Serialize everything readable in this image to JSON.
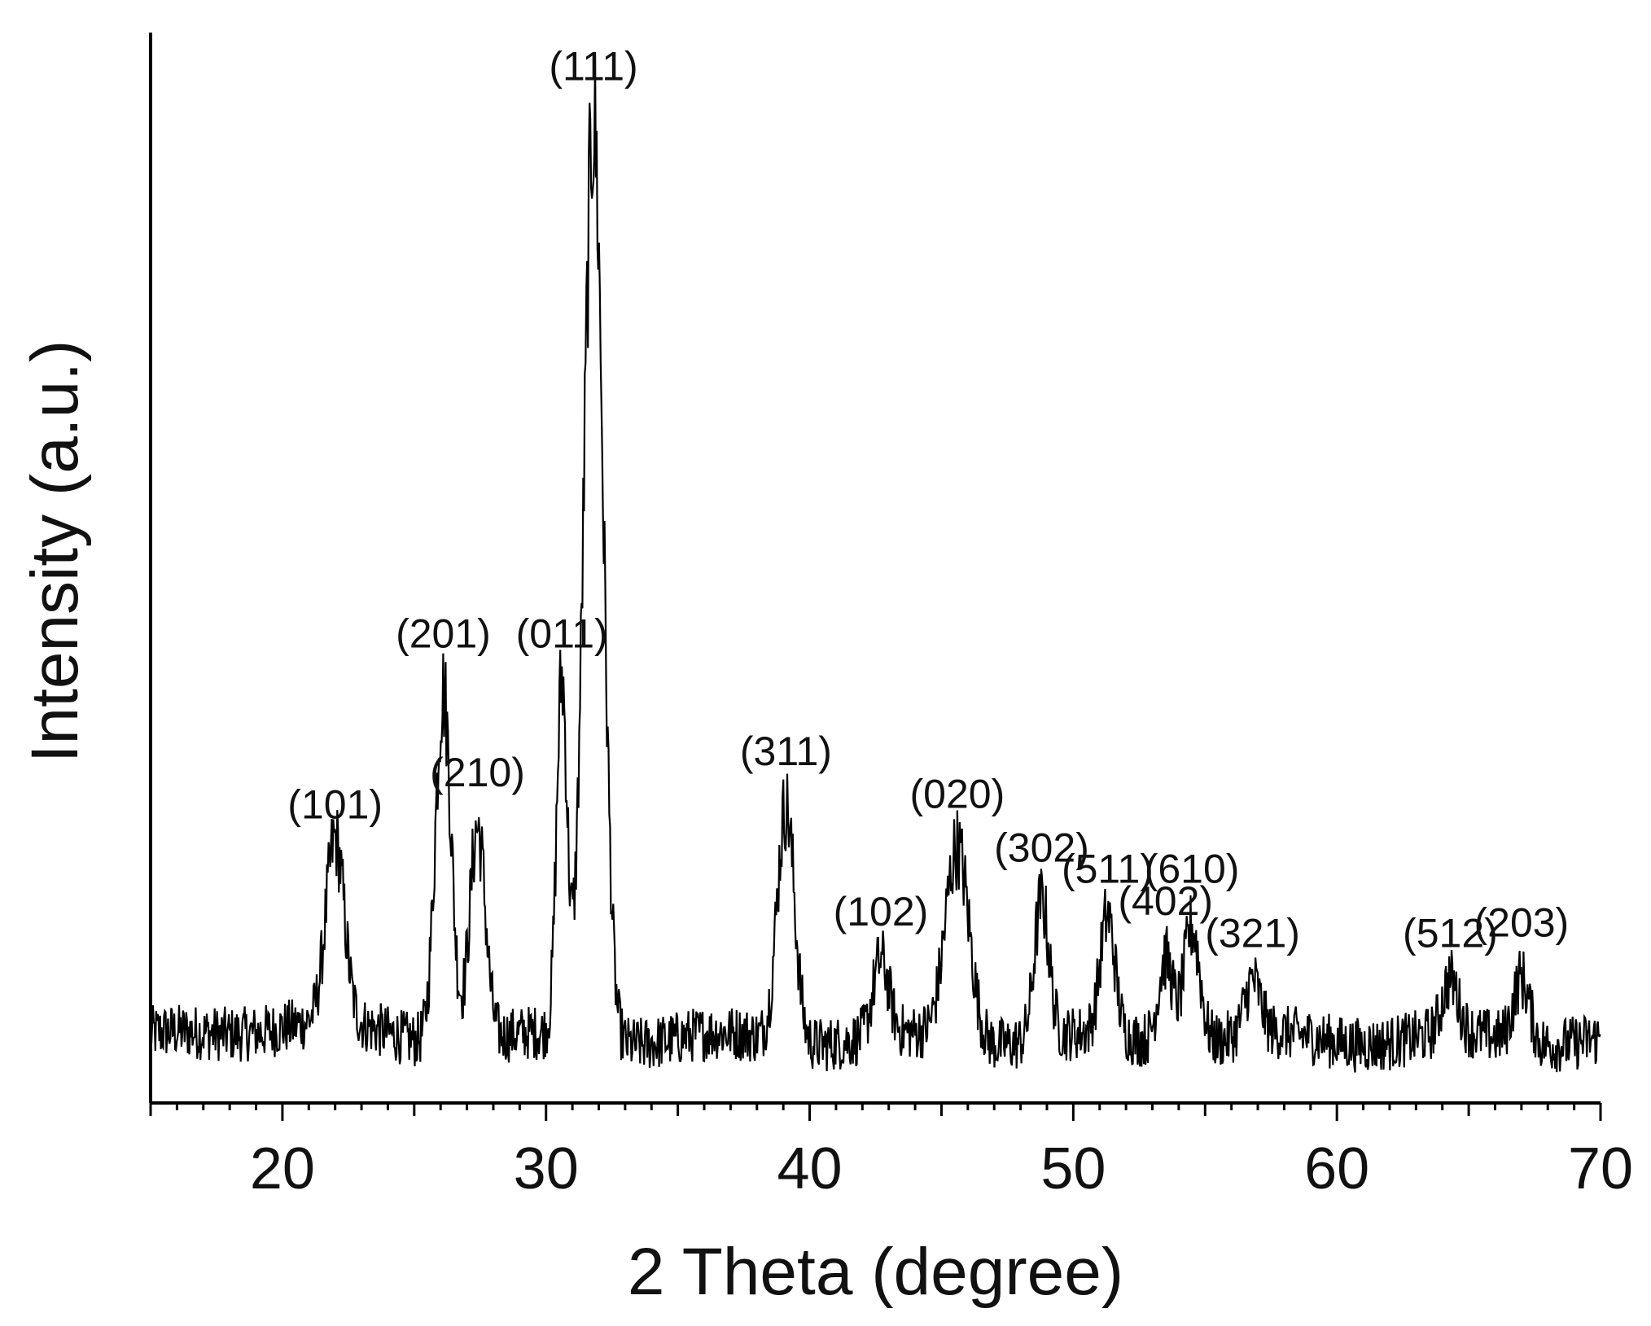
{
  "chart_data": {
    "type": "line",
    "title": "",
    "xlabel": "2 Theta (degree)",
    "ylabel": "Intensity (a.u.)",
    "xlim": [
      15,
      70
    ],
    "ylim": [
      0,
      100
    ],
    "xticks": [
      20,
      30,
      40,
      50,
      60,
      70
    ],
    "yticks_shown": false,
    "grid": false,
    "line_color": "#000000",
    "baseline": 6,
    "noise_amplitude": 2.6,
    "peaks": [
      {
        "label": "(101)",
        "two_theta": 22.0,
        "intensity": 17,
        "width": 0.35
      },
      {
        "label": "(201)",
        "two_theta": 26.1,
        "intensity": 33,
        "width": 0.3
      },
      {
        "label": "(210)",
        "two_theta": 27.4,
        "intensity": 20,
        "width": 0.3
      },
      {
        "label": "(011)",
        "two_theta": 30.6,
        "intensity": 33,
        "width": 0.2
      },
      {
        "label": "(111)",
        "two_theta": 31.8,
        "intensity": 86,
        "width": 0.36
      },
      {
        "label": "(311)",
        "two_theta": 39.1,
        "intensity": 22,
        "width": 0.33
      },
      {
        "label": "(102)",
        "two_theta": 42.7,
        "intensity": 7,
        "width": 0.3
      },
      {
        "label": "(020)",
        "two_theta": 45.6,
        "intensity": 18,
        "width": 0.45
      },
      {
        "label": "(302)",
        "two_theta": 48.8,
        "intensity": 13,
        "width": 0.28
      },
      {
        "label": "(511)",
        "two_theta": 51.3,
        "intensity": 11,
        "width": 0.28
      },
      {
        "label": "(402)",
        "two_theta": 53.5,
        "intensity": 8,
        "width": 0.28
      },
      {
        "label": "(610)",
        "two_theta": 54.5,
        "intensity": 11,
        "width": 0.3
      },
      {
        "label": "(321)",
        "two_theta": 56.8,
        "intensity": 5,
        "width": 0.3
      },
      {
        "label": "(512)",
        "two_theta": 64.3,
        "intensity": 5,
        "width": 0.3
      },
      {
        "label": "(203)",
        "two_theta": 67.0,
        "intensity": 6,
        "width": 0.3
      }
    ]
  }
}
